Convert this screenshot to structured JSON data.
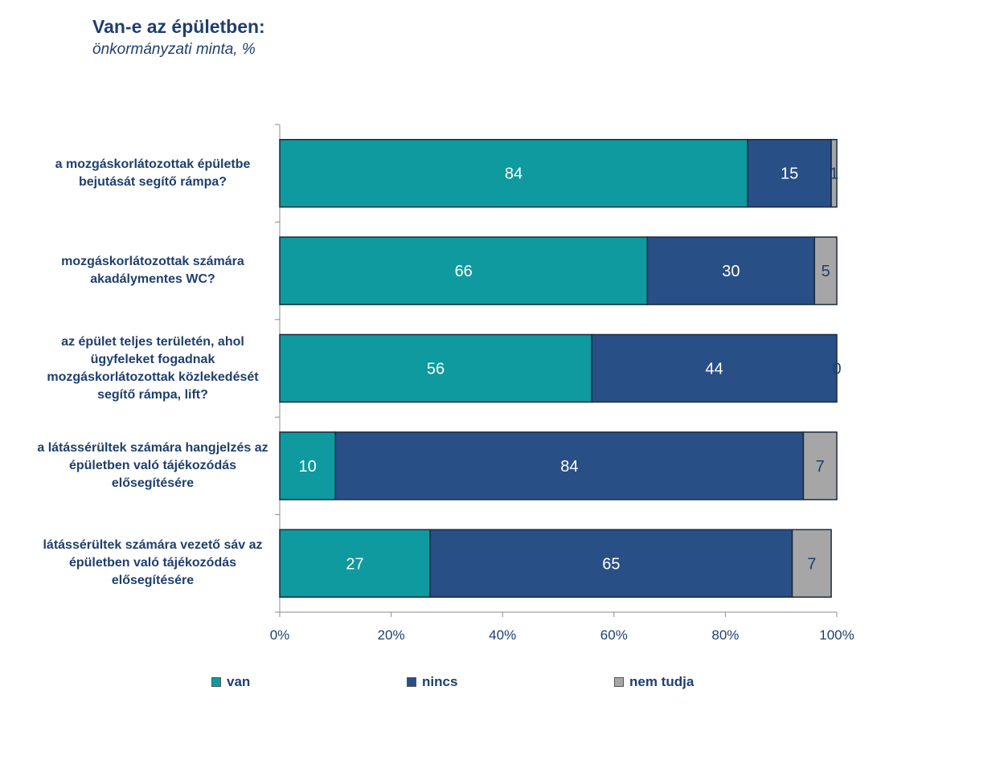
{
  "header": {
    "title": "Van-e az épületben:",
    "subtitle": "önkormányzati minta, %"
  },
  "chart_data": {
    "type": "bar",
    "orientation": "horizontal",
    "stacked": "percent",
    "title": "Van-e az épületben:",
    "subtitle": "önkormányzati minta, %",
    "categories": [
      "a mozgáskorlátozottak épületbe bejutását segítő rámpa?",
      "mozgáskorlátozottak számára akadálymentes WC?",
      "az épület teljes területén, ahol ügyfeleket fogadnak mozgáskorlátozottak közlekedését segítő rámpa, lift?",
      "a látássérültek számára hangjelzés az épületben való tájékozódás elősegítésére",
      "látássérültek számára vezető sáv az épületben való tájékozódás elősegítésére"
    ],
    "series": [
      {
        "name": "van",
        "color": "#0e9a9e",
        "values": [
          84,
          66,
          56,
          10,
          27
        ]
      },
      {
        "name": "nincs",
        "color": "#284f86",
        "values": [
          15,
          30,
          44,
          84,
          65
        ]
      },
      {
        "name": "nem tudja",
        "color": "#a6a6a6",
        "values": [
          1,
          5,
          0,
          7,
          7
        ]
      }
    ],
    "x_ticks": [
      "0%",
      "20%",
      "40%",
      "60%",
      "80%",
      "100%"
    ],
    "xlim": [
      0,
      100
    ],
    "legend": "bottom",
    "grid": false
  }
}
